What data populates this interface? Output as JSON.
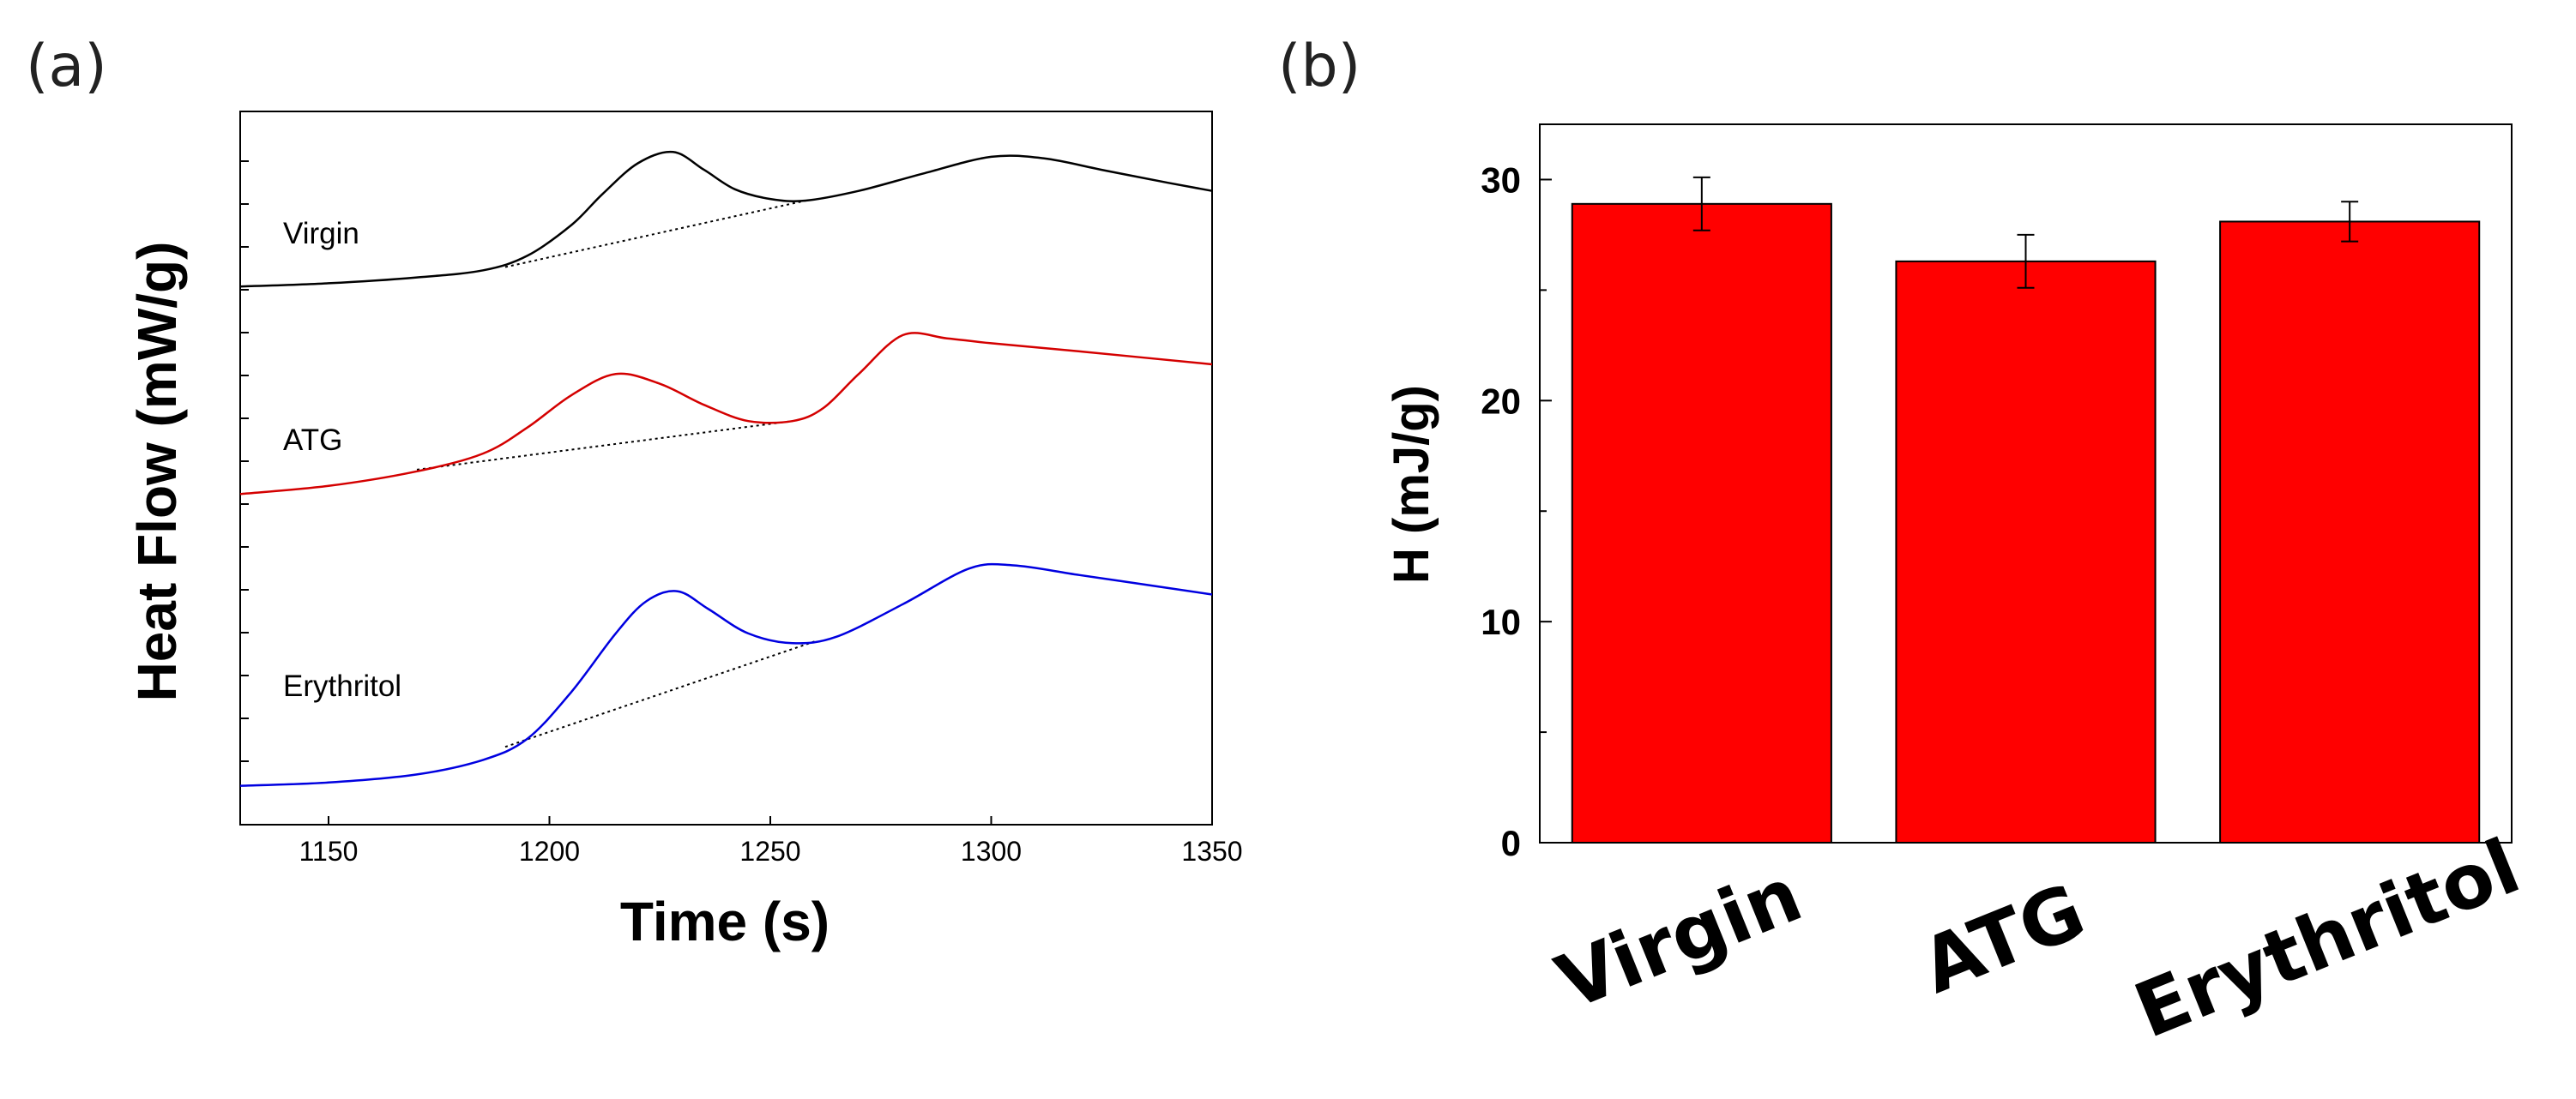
{
  "chart_data": [
    {
      "panel": "(a)",
      "type": "line",
      "xlabel": "Time (s)",
      "ylabel": "Heat Flow (mW/g)",
      "xlim": [
        1130,
        1350
      ],
      "x_ticks": [
        1150,
        1200,
        1250,
        1300,
        1350
      ],
      "y_ticks_labeled": false,
      "series": [
        {
          "name": "Virgin",
          "color": "#000000",
          "x": [
            1130,
            1150,
            1170,
            1185,
            1195,
            1205,
            1212,
            1220,
            1228,
            1235,
            1242,
            1250,
            1258,
            1270,
            1285,
            1300,
            1312,
            1325,
            1340,
            1350
          ],
          "y": [
            0.64,
            0.65,
            0.668,
            0.69,
            0.735,
            0.83,
            0.925,
            1.02,
            1.055,
            1.0,
            0.94,
            0.91,
            0.905,
            0.935,
            0.99,
            1.04,
            1.035,
            1.0,
            0.96,
            0.935
          ],
          "baseline": [
            [
              1190,
              0.7
            ],
            [
              1258,
              0.905
            ]
          ]
        },
        {
          "name": "ATG",
          "color": "#d40000",
          "x": [
            1130,
            1150,
            1170,
            1185,
            1195,
            1205,
            1215,
            1225,
            1235,
            1245,
            1255,
            1262,
            1270,
            1280,
            1290,
            1300,
            1320,
            1350
          ],
          "y": [
            0.0,
            0.025,
            0.07,
            0.125,
            0.205,
            0.305,
            0.37,
            0.34,
            0.275,
            0.225,
            0.225,
            0.265,
            0.37,
            0.49,
            0.48,
            0.465,
            0.44,
            0.4
          ],
          "baseline": [
            [
              1170,
              0.075
            ],
            [
              1255,
              0.225
            ]
          ]
        },
        {
          "name": "Erythritol",
          "color": "#0000e0",
          "x": [
            1130,
            1150,
            1170,
            1185,
            1195,
            1205,
            1215,
            1222,
            1229,
            1236,
            1245,
            1255,
            1265,
            1280,
            1295,
            1305,
            1320,
            1340,
            1350
          ],
          "y": [
            -0.9,
            -0.89,
            -0.865,
            -0.82,
            -0.755,
            -0.61,
            -0.43,
            -0.33,
            -0.3,
            -0.355,
            -0.43,
            -0.46,
            -0.44,
            -0.34,
            -0.23,
            -0.22,
            -0.25,
            -0.29,
            -0.31
          ],
          "baseline": [
            [
              1190,
              -0.78
            ],
            [
              1260,
              -0.455
            ]
          ]
        }
      ]
    },
    {
      "panel": "(b)",
      "type": "bar",
      "categories": [
        "Virgin",
        "ATG",
        "Erythritol"
      ],
      "values": [
        28.9,
        26.3,
        28.1
      ],
      "errors": [
        1.2,
        1.2,
        0.9
      ],
      "color": "#ff0000",
      "ylabel": "H (mJ/g)",
      "ylim": [
        0,
        32.5
      ],
      "y_ticks": [
        0,
        10,
        20,
        30
      ]
    }
  ]
}
